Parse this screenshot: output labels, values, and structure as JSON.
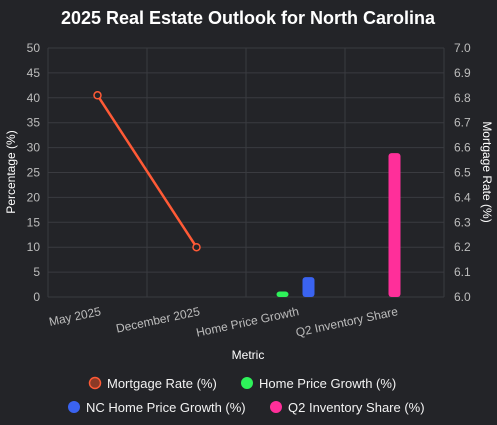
{
  "chart_data": {
    "type": "bar",
    "title": "2025 Real Estate Outlook for North Carolina",
    "xlabel": "Metric",
    "ylabel_left": "Percentage (%)",
    "ylabel_right": "Mortgage Rate (%)",
    "categories": [
      "May 2025",
      "December 2025",
      "Home Price Growth",
      "Q2 Inventory Share"
    ],
    "ylim_left": [
      0,
      50
    ],
    "yticks_left": [
      0,
      5,
      10,
      15,
      20,
      25,
      30,
      35,
      40,
      45,
      50
    ],
    "ylim_right": [
      6.0,
      7.0
    ],
    "yticks_right": [
      "6.0",
      "6.1",
      "6.2",
      "6.3",
      "6.4",
      "6.5",
      "6.6",
      "6.7",
      "6.8",
      "6.9",
      "7.0"
    ],
    "grid": true,
    "legend_position": "bottom",
    "series": [
      {
        "name": "Mortgage Rate (%)",
        "type": "line",
        "axis": "right",
        "color": "#ff5a36",
        "points": [
          {
            "category": "May 2025",
            "value": 6.81
          },
          {
            "category": "December 2025",
            "value": 6.2
          }
        ]
      },
      {
        "name": "Home Price Growth (%)",
        "type": "bar",
        "axis": "left",
        "color": "#2ef25a",
        "points": [
          {
            "category": "Home Price Growth",
            "value": 1.1
          }
        ]
      },
      {
        "name": "NC Home Price Growth (%)",
        "type": "bar",
        "axis": "left",
        "color": "#3a63f0",
        "points": [
          {
            "category": "Home Price Growth",
            "value": 4.0
          }
        ]
      },
      {
        "name": "Q2 Inventory Share (%)",
        "type": "bar",
        "axis": "left",
        "color": "#ff2f9a",
        "points": [
          {
            "category": "Q2 Inventory Share",
            "value": 28.9
          }
        ]
      }
    ]
  }
}
